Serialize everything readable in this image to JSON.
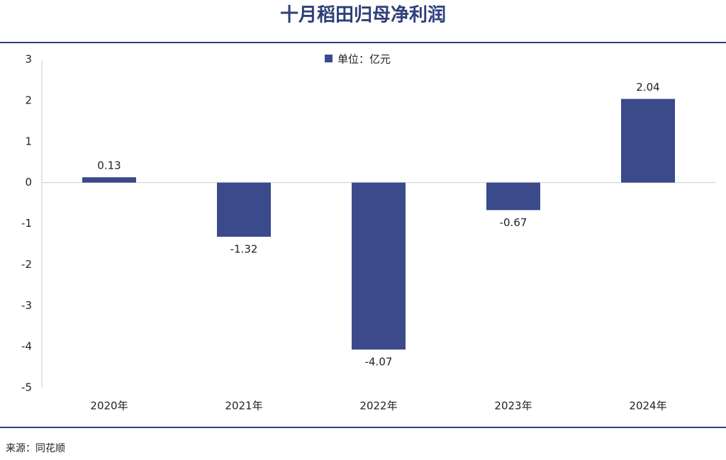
{
  "chart_data": {
    "type": "bar",
    "title": "十月稻田归母净利润",
    "source": "来源：同花顺",
    "categories": [
      "2020年",
      "2021年",
      "2022年",
      "2023年",
      "2024年"
    ],
    "series": [
      {
        "name": "单位：亿元",
        "color": "#3a4a8a",
        "values": [
          0.13,
          -1.32,
          -4.07,
          -0.67,
          2.04
        ]
      }
    ],
    "ylim": [
      -5,
      3
    ],
    "yticks": [
      -5,
      -4,
      -3,
      -2,
      -1,
      0,
      1,
      2,
      3
    ],
    "grid": false,
    "legend": "top"
  }
}
